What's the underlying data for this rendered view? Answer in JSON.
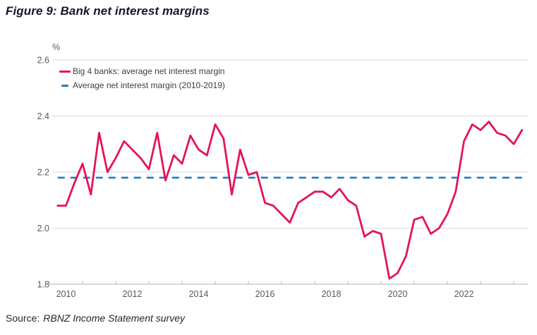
{
  "figure": {
    "title": "Figure 9: Bank net interest margins",
    "source_prefix": "Source:",
    "source_text": "RBNZ Income Statement survey"
  },
  "colors": {
    "series_pink": "#e4125f",
    "baseline_blue": "#1c7ec6",
    "gridline": "#d9d9d9",
    "axis": "#b3b3b3",
    "tick_label": "#595959",
    "title_text": "#16162e",
    "legend_text": "#3d3d3d",
    "source_text": "#262626",
    "background": "#ffffff"
  },
  "chart_data": {
    "type": "line",
    "title": "Figure 9: Bank net interest margins",
    "xlabel": "",
    "ylabel": "%",
    "ylim": [
      1.8,
      2.6
    ],
    "xlim": [
      2010,
      2024.43
    ],
    "grid": "horizontal",
    "legend_position": "top-left",
    "y_ticks": [
      "1.8",
      "2.0",
      "2.2",
      "2.4",
      "2.6"
    ],
    "y_tick_values": [
      1.8,
      2.0,
      2.2,
      2.4,
      2.6
    ],
    "x_tick_years": [
      2010,
      2011,
      2012,
      2013,
      2014,
      2015,
      2016,
      2017,
      2018,
      2019,
      2020,
      2021,
      2022,
      2023,
      2024
    ],
    "x_label_years": [
      "2010",
      "2012",
      "2014",
      "2016",
      "2018",
      "2020",
      "2022"
    ],
    "series": [
      {
        "name": "Big 4 banks: average net interest margin",
        "style": "solid",
        "color": "#e4125f",
        "frequency": "quarterly",
        "x_start": 2010.25,
        "x_step": 0.25,
        "values": [
          2.08,
          2.08,
          2.16,
          2.23,
          2.12,
          2.34,
          2.2,
          2.25,
          2.31,
          2.28,
          2.25,
          2.21,
          2.34,
          2.17,
          2.26,
          2.23,
          2.33,
          2.28,
          2.26,
          2.37,
          2.32,
          2.12,
          2.28,
          2.19,
          2.2,
          2.09,
          2.08,
          2.05,
          2.02,
          2.09,
          2.11,
          2.13,
          2.13,
          2.11,
          2.14,
          2.1,
          2.08,
          1.97,
          1.99,
          1.98,
          1.82,
          1.84,
          1.9,
          2.03,
          2.04,
          1.98,
          2.0,
          2.05,
          2.13,
          2.31,
          2.37,
          2.35,
          2.38,
          2.34,
          2.33,
          2.3,
          2.35
        ]
      },
      {
        "name": "Average net interest margin (2010-2019)",
        "style": "dashed",
        "color": "#1c7ec6",
        "value": 2.18,
        "x_range": [
          2010.25,
          2024.25
        ]
      }
    ]
  }
}
